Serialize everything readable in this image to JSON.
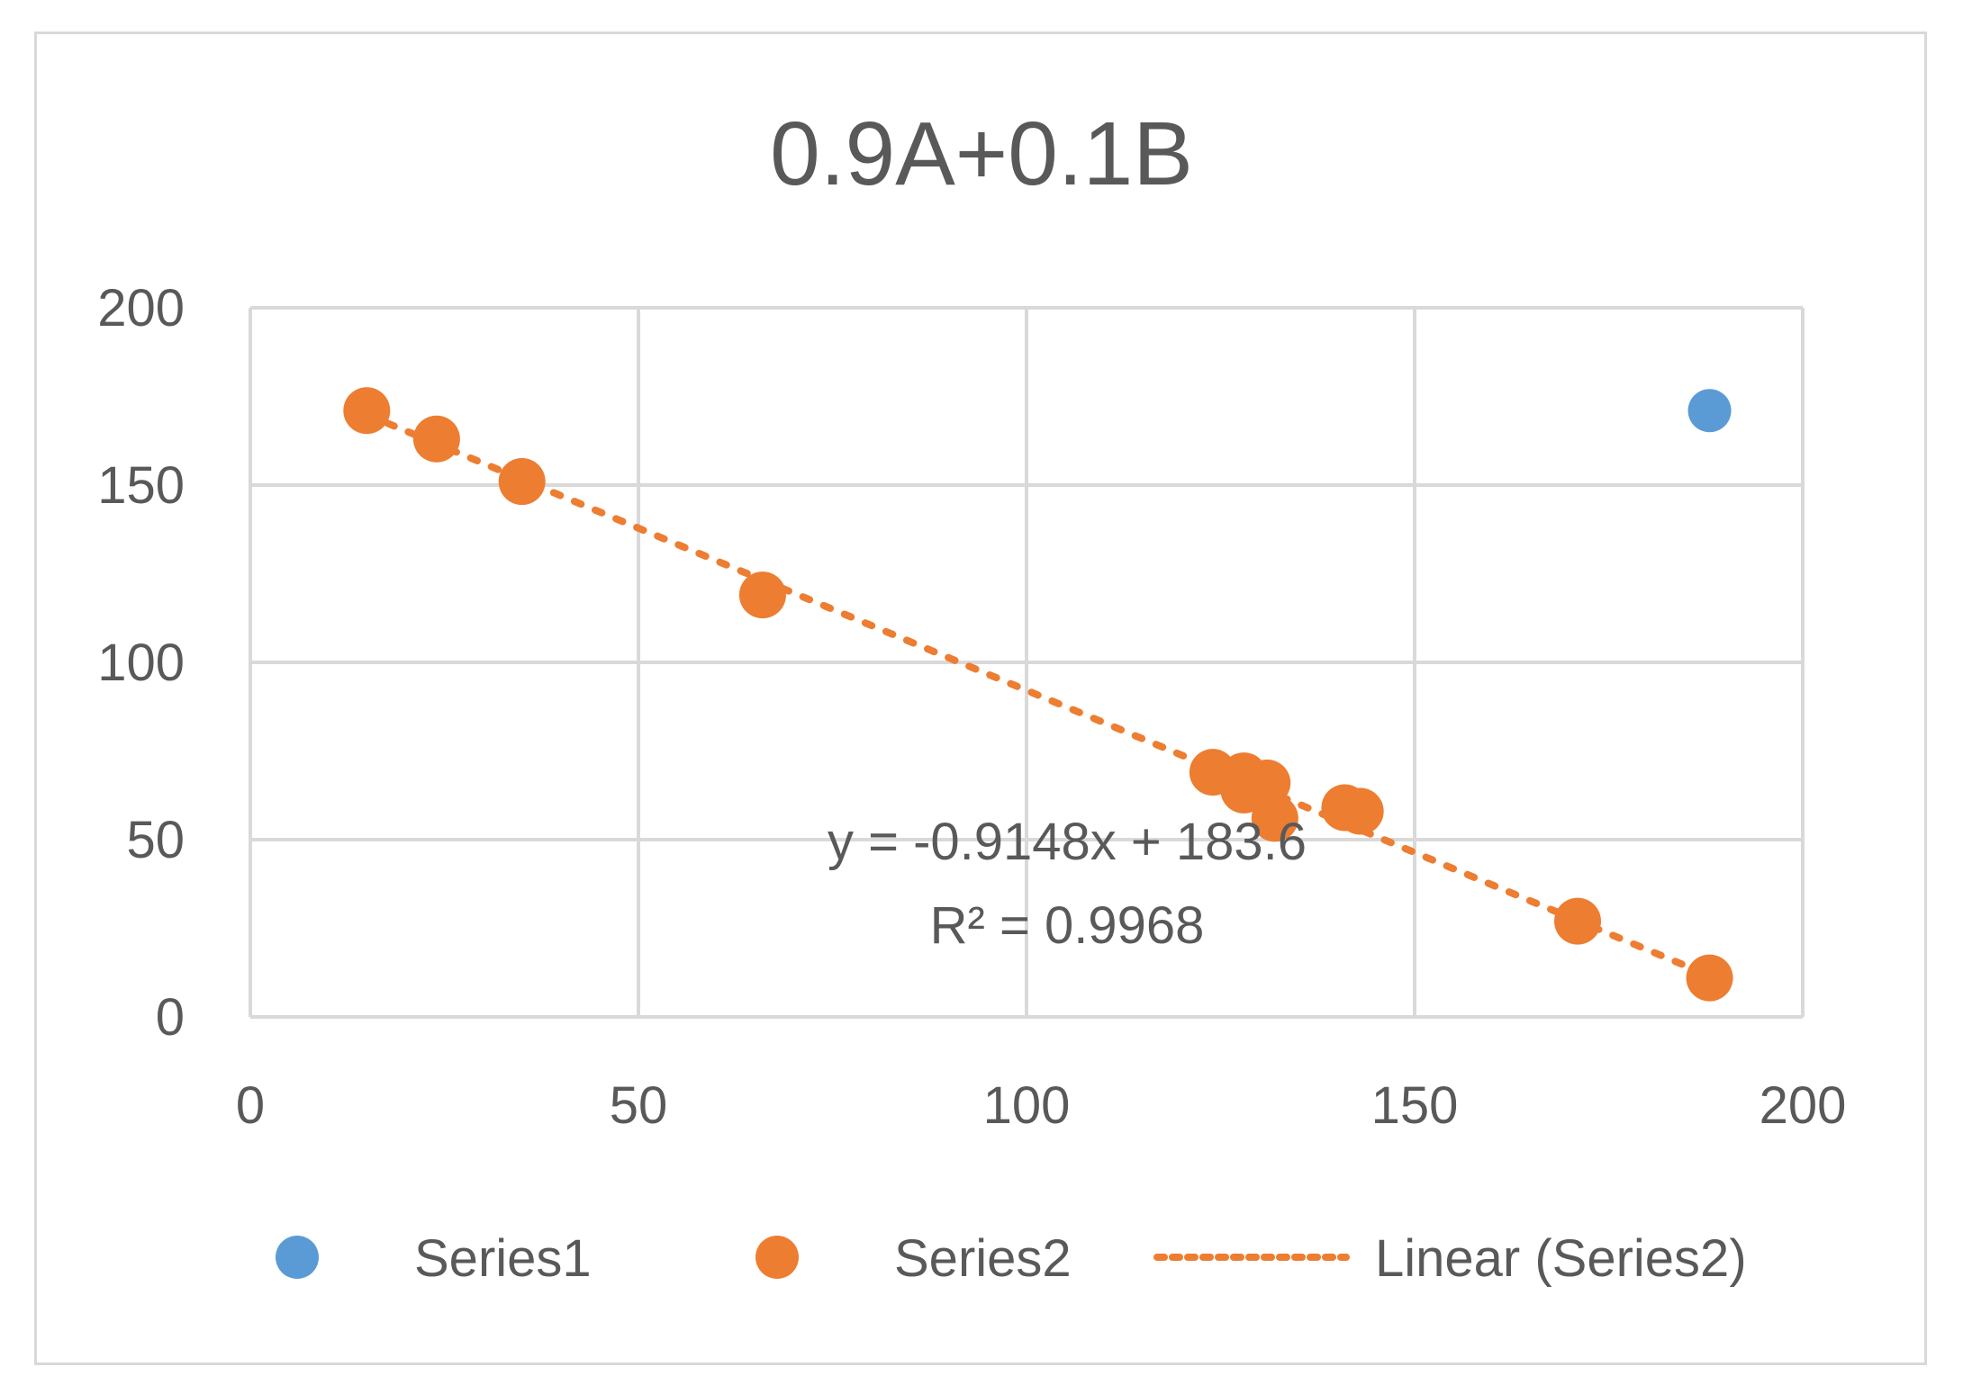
{
  "chart_data": {
    "type": "scatter",
    "title": "0.9A+0.1B",
    "xlabel": "",
    "ylabel": "",
    "xlim": [
      0,
      200
    ],
    "ylim": [
      0,
      200
    ],
    "x_ticks": [
      "0",
      "50",
      "100",
      "150",
      "200"
    ],
    "y_ticks": [
      "0",
      "50",
      "100",
      "150",
      "200"
    ],
    "grid": true,
    "legend_position": "bottom",
    "series": [
      {
        "name": "Series1",
        "color": "#5b9bd5",
        "points": [
          {
            "x": 188,
            "y": 171
          }
        ]
      },
      {
        "name": "Series2",
        "color": "#ed7d31",
        "points": [
          {
            "x": 15,
            "y": 171
          },
          {
            "x": 24,
            "y": 163
          },
          {
            "x": 35,
            "y": 151
          },
          {
            "x": 66,
            "y": 119
          },
          {
            "x": 124,
            "y": 69
          },
          {
            "x": 128,
            "y": 68
          },
          {
            "x": 128,
            "y": 64
          },
          {
            "x": 131,
            "y": 66
          },
          {
            "x": 132,
            "y": 56
          },
          {
            "x": 141,
            "y": 59
          },
          {
            "x": 143,
            "y": 58
          },
          {
            "x": 171,
            "y": 27
          },
          {
            "x": 188,
            "y": 11
          }
        ]
      }
    ],
    "trendline": {
      "name": "Linear (Series2)",
      "series": "Series2",
      "type": "linear",
      "slope": -0.9148,
      "intercept": 183.6,
      "x_range": [
        15,
        188
      ],
      "color": "#ed7d31",
      "style": "dotted",
      "equation_label": "y = -0.9148x + 183.6",
      "r2_label": "R² = 0.9968"
    }
  }
}
